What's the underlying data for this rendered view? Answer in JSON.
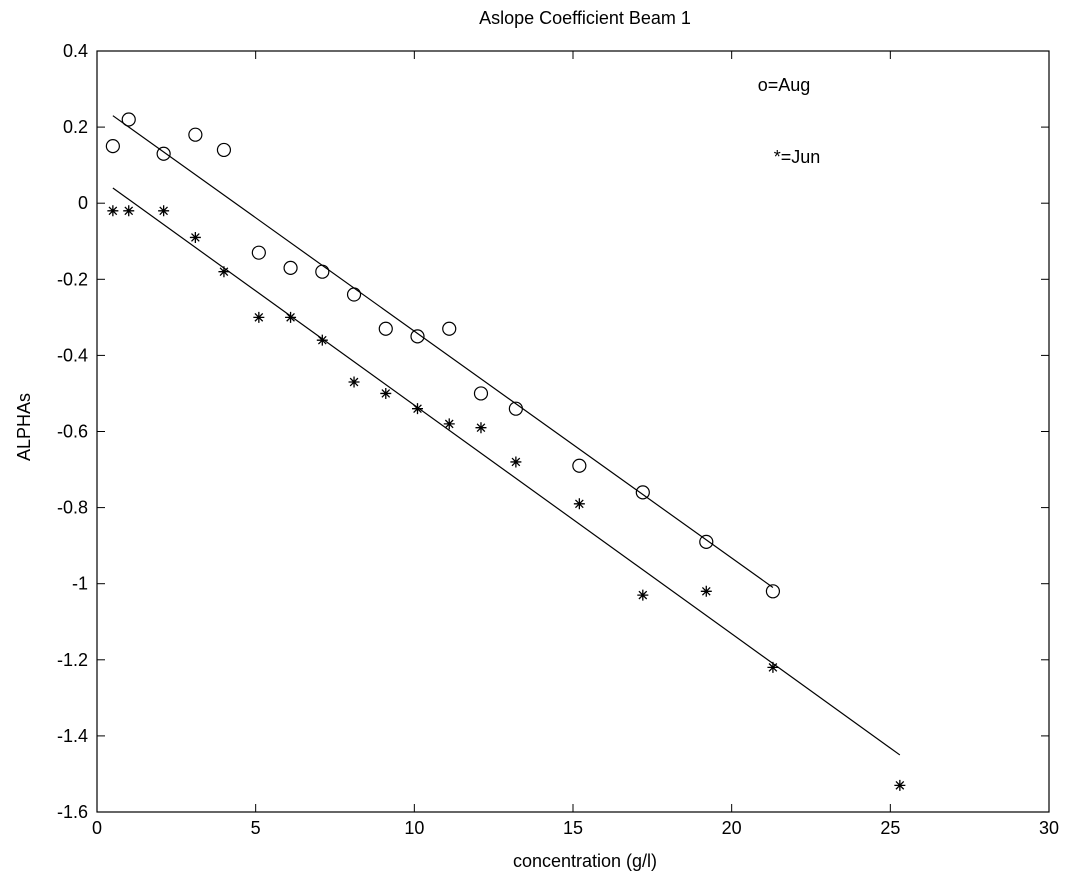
{
  "chart_data": {
    "type": "scatter",
    "title": "Aslope Coefficient Beam 1",
    "xlabel": "concentration (g/l)",
    "ylabel": "ALPHAs",
    "xlim": [
      0,
      30
    ],
    "ylim": [
      -1.6,
      0.4
    ],
    "x_ticks": [
      0,
      5,
      10,
      15,
      20,
      25,
      30
    ],
    "x_tick_labels": [
      "0",
      "5",
      "10",
      "15",
      "20",
      "25",
      "30"
    ],
    "y_ticks": [
      0.4,
      0.2,
      0,
      -0.2,
      -0.4,
      -0.6,
      -0.8,
      -1,
      -1.2,
      -1.4,
      -1.6
    ],
    "y_tick_labels": [
      "0.4",
      "0.2",
      "0",
      "-0.2",
      "-0.4",
      "-0.6",
      "-0.8",
      "-1",
      "-1.2",
      "-1.4",
      "-1.6"
    ],
    "grid": false,
    "legend_placement": "top-right",
    "legend_entries": [
      "o=Aug",
      "*=Jun"
    ],
    "series": [
      {
        "marker": "circle",
        "x": [
          0.5,
          1.0,
          2.1,
          3.1,
          4.0,
          5.1,
          6.1,
          7.1,
          8.1,
          9.1,
          10.1,
          11.1,
          12.1,
          13.2,
          15.2,
          17.2,
          19.2,
          21.3
        ],
        "y": [
          0.15,
          0.22,
          0.13,
          0.18,
          0.14,
          -0.13,
          -0.17,
          -0.18,
          -0.24,
          -0.33,
          -0.35,
          -0.33,
          -0.5,
          -0.54,
          -0.69,
          -0.76,
          -0.89,
          -1.02
        ],
        "fit": {
          "x": [
            0.5,
            21.3
          ],
          "y": [
            0.23,
            -1.01
          ]
        }
      },
      {
        "marker": "star",
        "x": [
          0.5,
          1.0,
          2.1,
          3.1,
          4.0,
          5.1,
          6.1,
          7.1,
          8.1,
          9.1,
          10.1,
          11.1,
          12.1,
          13.2,
          15.2,
          17.2,
          19.2,
          21.3,
          25.3
        ],
        "y": [
          -0.02,
          -0.02,
          -0.02,
          -0.09,
          -0.18,
          -0.3,
          -0.3,
          -0.36,
          -0.47,
          -0.5,
          -0.54,
          -0.58,
          -0.59,
          -0.68,
          -0.79,
          -1.03,
          -1.02,
          -1.22,
          -1.53
        ],
        "fit": {
          "x": [
            0.5,
            25.3
          ],
          "y": [
            0.04,
            -1.45
          ]
        }
      }
    ]
  }
}
